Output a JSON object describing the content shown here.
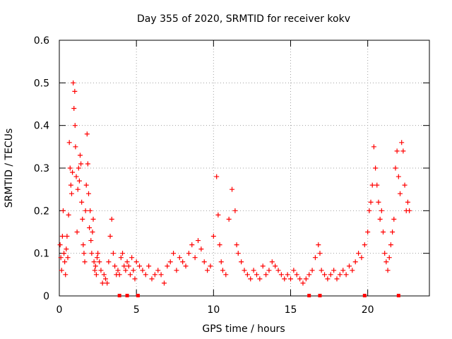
{
  "chart_data": {
    "type": "scatter",
    "title": "Day 355 of 2020, SRMTID for receiver kokv",
    "xlabel": "GPS time / hours",
    "ylabel": "SRMTID / TECUs",
    "xlim": [
      0,
      24
    ],
    "ylim": [
      0,
      0.6
    ],
    "xticks": [
      0,
      5,
      10,
      15,
      20
    ],
    "xtick_labels": [
      "0",
      "5",
      "10",
      "15",
      "20"
    ],
    "yticks": [
      0,
      0.1,
      0.2,
      0.3,
      0.4,
      0.5,
      0.6
    ],
    "ytick_labels": [
      "0",
      "0.1",
      "0.2",
      "0.3",
      "0.4",
      "0.5",
      "0.6"
    ],
    "grid": true,
    "marker": "+",
    "colors": {
      "points": "#ff0000",
      "axes": "#000000",
      "grid": "#a0a0a0"
    },
    "series": [
      {
        "name": "SRMTID",
        "x": [
          0.05,
          0.1,
          0.15,
          0.2,
          0.25,
          0.3,
          0.35,
          0.4,
          0.45,
          0.5,
          0.55,
          0.6,
          0.65,
          0.7,
          0.75,
          0.8,
          0.85,
          0.9,
          0.95,
          1.0,
          1.02,
          1.05,
          1.1,
          1.15,
          1.2,
          1.25,
          1.3,
          1.35,
          1.4,
          1.45,
          1.5,
          1.55,
          1.6,
          1.65,
          1.7,
          1.75,
          1.8,
          1.85,
          1.9,
          1.95,
          2.0,
          2.05,
          2.1,
          2.15,
          2.2,
          2.25,
          2.3,
          2.35,
          2.4,
          2.45,
          2.5,
          2.6,
          2.7,
          2.8,
          2.9,
          3.0,
          3.1,
          3.2,
          3.3,
          3.4,
          3.5,
          3.6,
          3.7,
          3.8,
          3.9,
          4.0,
          4.1,
          4.2,
          4.3,
          4.4,
          4.5,
          4.6,
          4.7,
          4.8,
          4.9,
          5.0,
          5.2,
          5.4,
          5.6,
          5.8,
          6.0,
          6.2,
          6.4,
          6.6,
          6.8,
          7.0,
          7.2,
          7.4,
          7.6,
          7.8,
          8.0,
          8.2,
          8.4,
          8.6,
          8.8,
          9.0,
          9.2,
          9.4,
          9.6,
          9.8,
          10.0,
          10.2,
          10.3,
          10.4,
          10.5,
          10.6,
          10.8,
          11.0,
          11.2,
          11.4,
          11.5,
          11.6,
          11.8,
          12.0,
          12.2,
          12.4,
          12.6,
          12.8,
          13.0,
          13.2,
          13.4,
          13.6,
          13.8,
          14.0,
          14.2,
          14.4,
          14.6,
          14.8,
          15.0,
          15.2,
          15.4,
          15.6,
          15.8,
          16.0,
          16.2,
          16.4,
          16.6,
          16.8,
          16.9,
          17.0,
          17.2,
          17.4,
          17.6,
          17.8,
          18.0,
          18.2,
          18.4,
          18.6,
          18.8,
          19.0,
          19.2,
          19.4,
          19.6,
          19.8,
          20.0,
          20.1,
          20.2,
          20.3,
          20.4,
          20.5,
          20.6,
          20.7,
          20.8,
          20.9,
          21.0,
          21.1,
          21.2,
          21.3,
          21.4,
          21.5,
          21.6,
          21.7,
          21.8,
          21.9,
          22.0,
          22.1,
          22.2,
          22.3,
          22.4,
          22.5,
          22.6,
          22.7
        ],
        "y": [
          0.12,
          0.09,
          0.06,
          0.14,
          0.2,
          0.1,
          0.08,
          0.05,
          0.11,
          0.14,
          0.09,
          0.19,
          0.36,
          0.3,
          0.26,
          0.24,
          0.29,
          0.5,
          0.44,
          0.48,
          0.4,
          0.35,
          0.28,
          0.15,
          0.25,
          0.3,
          0.27,
          0.33,
          0.31,
          0.22,
          0.18,
          0.12,
          0.1,
          0.08,
          0.2,
          0.26,
          0.38,
          0.31,
          0.24,
          0.16,
          0.2,
          0.13,
          0.1,
          0.15,
          0.18,
          0.08,
          0.06,
          0.07,
          0.05,
          0.09,
          0.1,
          0.08,
          0.06,
          0.03,
          0.05,
          0.04,
          0.03,
          0.08,
          0.14,
          0.18,
          0.1,
          0.07,
          0.05,
          0.06,
          0.05,
          0.09,
          0.1,
          0.07,
          0.06,
          0.08,
          0.07,
          0.05,
          0.09,
          0.06,
          0.04,
          0.08,
          0.07,
          0.06,
          0.05,
          0.07,
          0.04,
          0.05,
          0.06,
          0.05,
          0.03,
          0.07,
          0.08,
          0.1,
          0.06,
          0.09,
          0.08,
          0.07,
          0.1,
          0.12,
          0.09,
          0.13,
          0.11,
          0.08,
          0.06,
          0.07,
          0.14,
          0.28,
          0.19,
          0.12,
          0.08,
          0.06,
          0.05,
          0.18,
          0.25,
          0.2,
          0.12,
          0.1,
          0.08,
          0.06,
          0.05,
          0.04,
          0.06,
          0.05,
          0.04,
          0.07,
          0.05,
          0.06,
          0.08,
          0.07,
          0.06,
          0.05,
          0.04,
          0.05,
          0.04,
          0.06,
          0.05,
          0.04,
          0.03,
          0.04,
          0.05,
          0.06,
          0.09,
          0.12,
          0.1,
          0.06,
          0.05,
          0.04,
          0.05,
          0.06,
          0.04,
          0.05,
          0.06,
          0.05,
          0.07,
          0.06,
          0.08,
          0.1,
          0.09,
          0.12,
          0.15,
          0.2,
          0.22,
          0.26,
          0.35,
          0.3,
          0.26,
          0.22,
          0.18,
          0.2,
          0.15,
          0.1,
          0.08,
          0.06,
          0.09,
          0.12,
          0.15,
          0.18,
          0.3,
          0.34,
          0.28,
          0.24,
          0.36,
          0.34,
          0.26,
          0.2,
          0.22,
          0.2
        ]
      }
    ],
    "outages_x": [
      3.9,
      4.4,
      5.1,
      16.2,
      16.9,
      19.8,
      22.0
    ]
  }
}
